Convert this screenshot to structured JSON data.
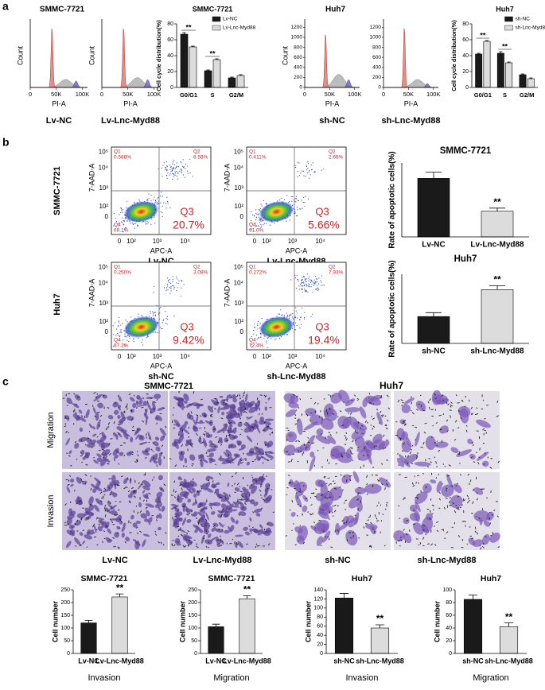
{
  "panel_labels": [
    "a",
    "b",
    "c"
  ],
  "cell_cycle_histograms": [
    {
      "title": "SMMC-7721",
      "ylabel": "Count",
      "xlabel": "PI-A",
      "xlim": [
        0,
        110000
      ],
      "xticks": [
        0,
        {
          "value": 50000,
          "label": "50K"
        },
        {
          "value": 100000,
          "label": "100K"
        }
      ],
      "caption": "Lv-NC"
    },
    {
      "ylabel": "Count",
      "xlabel": "PI-A",
      "xlim": [
        0,
        110000
      ],
      "xticks": [
        0,
        {
          "value": 50000,
          "label": "50K"
        },
        {
          "value": 100000,
          "label": "100K"
        }
      ],
      "caption": "Lv-Lnc-Myd88"
    },
    {
      "title": "Huh7",
      "ylabel": "Count",
      "xlabel": "PI-A",
      "xlim": [
        0,
        110000
      ],
      "xticks": [
        0,
        {
          "value": 50000,
          "label": "50K"
        },
        {
          "value": 100000,
          "label": "100K"
        }
      ],
      "ylim": [
        0,
        1300
      ],
      "yticks": [
        0,
        200,
        400,
        600,
        800,
        1000,
        1200
      ],
      "caption": "sh-NC"
    },
    {
      "xlabel": "PI-A",
      "xlim": [
        0,
        110000
      ],
      "xticks": [
        0,
        {
          "value": 50000,
          "label": "50K"
        },
        {
          "value": 100000,
          "label": "100K"
        }
      ],
      "ylim": [
        0,
        1300
      ],
      "yticks": [
        0,
        200,
        400,
        600,
        800,
        1000,
        1200
      ],
      "caption": "sh-Lnc-Myd88"
    }
  ],
  "apoptosis_row_labels": [
    "SMMC-7721",
    "Huh7"
  ],
  "apoptosis_plots": [
    {
      "ylabel": "7-AAD-A",
      "xlabel": "APC-A",
      "yticks": [
        "10⁵",
        "10⁴",
        "10³",
        "10²",
        "0"
      ],
      "xticks": [
        "0",
        "10²",
        "10³",
        "10⁴"
      ],
      "quadrants": [
        {
          "name": "Q1",
          "value": "0.588%"
        },
        {
          "name": "Q2",
          "value": "8.58%"
        },
        {
          "name": "Q4",
          "value": "69.1%"
        },
        {
          "name": "Q3",
          "value": "20.7%"
        }
      ],
      "caption": "Lv-NC"
    },
    {
      "ylabel": "7-AAD-A",
      "xlabel": "APC-A",
      "yticks": [
        "10⁵",
        "10⁴",
        "10³",
        "10²",
        "0"
      ],
      "xticks": [
        "0",
        "10²",
        "10³",
        "10⁴"
      ],
      "quadrants": [
        {
          "name": "Q1",
          "value": "0.411%"
        },
        {
          "name": "Q2",
          "value": "2.66%"
        },
        {
          "name": "Q4",
          "value": "91.0%"
        },
        {
          "name": "Q3",
          "value": "5.66%"
        }
      ],
      "caption": "Lv-Lnc-Myd88"
    },
    {
      "ylabel": "7-AAD-A",
      "xlabel": "APC-A",
      "yticks": [
        "10⁵",
        "10⁴",
        "10³",
        "10²",
        "0"
      ],
      "xticks": [
        "0",
        "10²",
        "10³",
        "10⁴"
      ],
      "quadrants": [
        {
          "name": "Q1",
          "value": "0.250%"
        },
        {
          "name": "Q2",
          "value": "3.08%"
        },
        {
          "name": "Q4",
          "value": "87.2%"
        },
        {
          "name": "Q3",
          "value": "9.42%"
        }
      ],
      "caption": "sh-NC"
    },
    {
      "ylabel": "7-AAD-A",
      "xlabel": "APC-A",
      "yticks": [
        "10⁵",
        "10⁴",
        "10³",
        "10²",
        "0"
      ],
      "xticks": [
        "0",
        "10²",
        "10³",
        "10⁴"
      ],
      "quadrants": [
        {
          "name": "Q1",
          "value": "0.272%"
        },
        {
          "name": "Q2",
          "value": "7.93%"
        },
        {
          "name": "Q4",
          "value": "72.4%"
        },
        {
          "name": "Q3",
          "value": "19.4%"
        }
      ],
      "caption": "sh-Lnc-Myd88"
    }
  ],
  "transwell": {
    "titles": [
      "SMMC-7721",
      "Huh7"
    ],
    "row_labels": [
      "Migration",
      "Invasion"
    ],
    "captions": [
      "Lv-NC",
      "Lv-Lnc-Myd88",
      "sh-NC",
      "sh-Lnc-Myd88"
    ]
  },
  "chart_data": [
    {
      "type": "bar",
      "title": "SMMC-7721",
      "ylabel": "Cell cycle distribution(%)",
      "categories": [
        "G0/G1",
        "S",
        "G2/M"
      ],
      "series": [
        {
          "name": "Lv-NC",
          "color": "#1a1a1a",
          "values": [
            67,
            21,
            12
          ],
          "errors": [
            2,
            1,
            1
          ]
        },
        {
          "name": "Lv-Lnc-Myd88",
          "color": "#dcdcdc",
          "values": [
            51,
            35,
            15
          ],
          "errors": [
            1,
            1,
            1
          ]
        }
      ],
      "significance": [
        "**",
        "**",
        null
      ],
      "ylim": [
        0,
        80
      ],
      "yticks": [
        0,
        20,
        40,
        60,
        80
      ],
      "legend": "upper right"
    },
    {
      "type": "bar",
      "title": "Huh7",
      "ylabel": "Cell cycle distribution(%)",
      "categories": [
        "G0/G1",
        "S",
        "G2/M"
      ],
      "series": [
        {
          "name": "sh-NC",
          "color": "#1a1a1a",
          "values": [
            42,
            43,
            16
          ],
          "errors": [
            1,
            2,
            1
          ]
        },
        {
          "name": "sh-Lnc-Myd88",
          "color": "#dcdcdc",
          "values": [
            58,
            31,
            11
          ],
          "errors": [
            1,
            1,
            1
          ]
        }
      ],
      "significance": [
        "**",
        "**",
        null
      ],
      "ylim": [
        0,
        80
      ],
      "yticks": [
        0,
        20,
        40,
        60,
        80
      ],
      "legend": "upper right"
    },
    {
      "type": "bar",
      "title": "SMMC-7721",
      "ylabel": "Rate of apoptotic cells(%)",
      "categories": [
        "Lv-NC",
        "Lv-Lnc-Myd88"
      ],
      "values": [
        28.5,
        12.5
      ],
      "errors": [
        3,
        1.5
      ],
      "colors": [
        "#1a1a1a",
        "#dcdcdc"
      ],
      "significance": [
        null,
        "**"
      ],
      "ylim": [
        0,
        36
      ]
    },
    {
      "type": "bar",
      "title": "Huh7",
      "ylabel": "Rate of apoptotic cells(%)",
      "categories": [
        "sh-NC",
        "sh-Lnc-Myd88"
      ],
      "values": [
        14,
        28
      ],
      "errors": [
        2,
        2
      ],
      "colors": [
        "#1a1a1a",
        "#dcdcdc"
      ],
      "significance": [
        null,
        "**"
      ],
      "ylim": [
        0,
        36
      ]
    },
    {
      "type": "bar",
      "title": "SMMC-7721",
      "ylabel": "Cell number",
      "xlabel": "Invasion",
      "categories": [
        "Lv-NC",
        "Lv-Lnc-Myd88"
      ],
      "values": [
        120,
        222
      ],
      "errors": [
        10,
        12
      ],
      "colors": [
        "#1a1a1a",
        "#dcdcdc"
      ],
      "significance": [
        null,
        "**"
      ],
      "ylim": [
        0,
        250
      ],
      "yticks": [
        0,
        50,
        100,
        150,
        200,
        250
      ]
    },
    {
      "type": "bar",
      "title": "SMMC-7721",
      "ylabel": "Cell number",
      "xlabel": "Migration",
      "categories": [
        "Lv-NC",
        "Lv-Lnc-Myd88"
      ],
      "values": [
        105,
        215
      ],
      "errors": [
        10,
        12
      ],
      "colors": [
        "#1a1a1a",
        "#dcdcdc"
      ],
      "significance": [
        null,
        "**"
      ],
      "ylim": [
        0,
        250
      ],
      "yticks": [
        0,
        50,
        100,
        150,
        200,
        250
      ]
    },
    {
      "type": "bar",
      "title": "Huh7",
      "ylabel": "Cell number",
      "xlabel": "Invasion",
      "categories": [
        "sh-NC",
        "sh-Lnc-Myd88"
      ],
      "values": [
        122,
        56
      ],
      "errors": [
        10,
        7
      ],
      "colors": [
        "#1a1a1a",
        "#dcdcdc"
      ],
      "significance": [
        null,
        "**"
      ],
      "ylim": [
        0,
        140
      ],
      "yticks": [
        0,
        20,
        40,
        60,
        80,
        100,
        120,
        140
      ]
    },
    {
      "type": "bar",
      "title": "Huh7",
      "ylabel": "Cell number",
      "xlabel": "Migration",
      "categories": [
        "sh-NC",
        "sh-Lnc-Myd88"
      ],
      "values": [
        85,
        42
      ],
      "errors": [
        7,
        6
      ],
      "colors": [
        "#1a1a1a",
        "#dcdcdc"
      ],
      "significance": [
        null,
        "**"
      ],
      "ylim": [
        0,
        100
      ],
      "yticks": [
        0,
        20,
        40,
        60,
        80,
        100
      ]
    }
  ]
}
